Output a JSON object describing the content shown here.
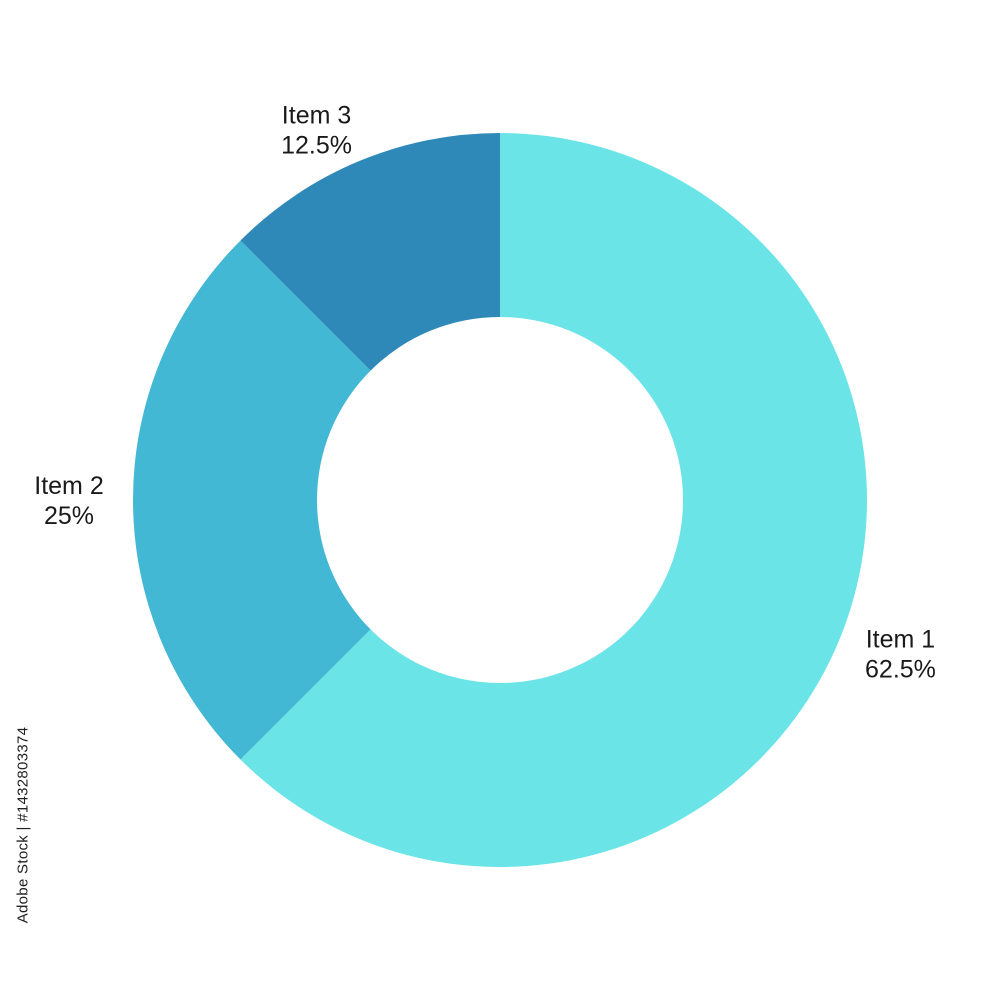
{
  "chart_data": {
    "type": "pie",
    "donut": true,
    "title": "",
    "start_angle_deg": 0,
    "direction": "clockwise",
    "slices": [
      {
        "label": "Item 1",
        "value": 62.5,
        "value_text": "62.5%",
        "color": "#6AE4E7"
      },
      {
        "label": "Item 2",
        "value": 25,
        "value_text": "25%",
        "color": "#42B8D5"
      },
      {
        "label": "Item 3",
        "value": 12.5,
        "value_text": "12.5%",
        "color": "#2E89B9"
      }
    ],
    "legend": "none"
  },
  "watermark": {
    "text": "Adobe Stock | #1432803374"
  }
}
